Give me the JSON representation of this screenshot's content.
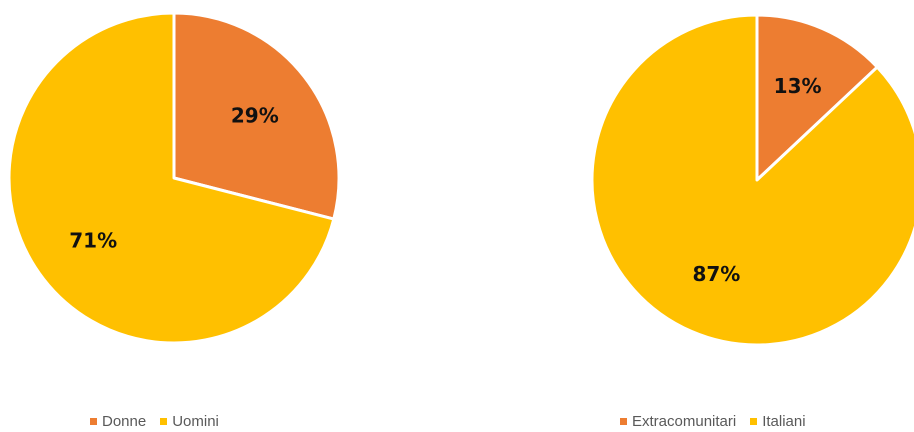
{
  "colors": {
    "first": "#ED7D31",
    "second": "#FFC000"
  },
  "chart_data": [
    {
      "type": "pie",
      "title": "",
      "categories": [
        "Donne",
        "Uomini"
      ],
      "values": [
        29,
        71
      ],
      "labels": [
        "29%",
        "71%"
      ],
      "legend": "bottom"
    },
    {
      "type": "pie",
      "title": "",
      "categories": [
        "Extracomunitari",
        "Italiani"
      ],
      "values": [
        13,
        87
      ],
      "labels": [
        "13%",
        "87%"
      ],
      "legend": "bottom"
    }
  ]
}
